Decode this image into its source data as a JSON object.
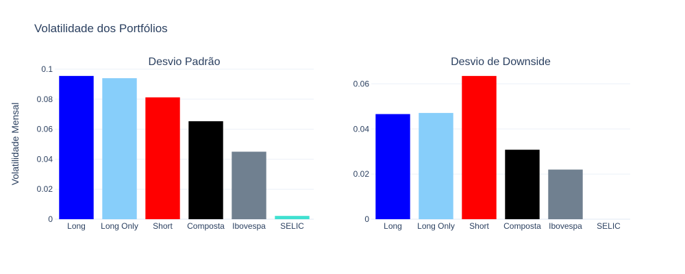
{
  "figure": {
    "title": "Volatilidade dos Portfólios",
    "ylabel": "Volatilidade Mensal"
  },
  "chart_data": [
    {
      "type": "bar",
      "title": "Desvio Padrão",
      "categories": [
        "Long",
        "Long Only",
        "Short",
        "Composta",
        "Ibovespa",
        "SELIC"
      ],
      "values": [
        0.0955,
        0.094,
        0.0812,
        0.0653,
        0.045,
        0.0022
      ],
      "colors": [
        "#0000ff",
        "#87cefa",
        "#ff0000",
        "#000000",
        "#708090",
        "#40e0d0"
      ],
      "ylim": [
        0,
        0.1
      ],
      "yticks": [
        0,
        0.02,
        0.04,
        0.06,
        0.08,
        0.1
      ],
      "ytick_labels": [
        "0",
        "0.02",
        "0.04",
        "0.06",
        "0.08",
        "0.1"
      ],
      "ylabel": "Volatilidade Mensal",
      "grid": true
    },
    {
      "type": "bar",
      "title": "Desvio de Downside",
      "categories": [
        "Long",
        "Long Only",
        "Short",
        "Composta",
        "Ibovespa",
        "SELIC"
      ],
      "values": [
        0.0466,
        0.0471,
        0.0635,
        0.0308,
        0.022,
        0
      ],
      "colors": [
        "#0000ff",
        "#87cefa",
        "#ff0000",
        "#000000",
        "#708090",
        "#40e0d0"
      ],
      "ylim": [
        0,
        0.0665
      ],
      "yticks": [
        0,
        0.02,
        0.04,
        0.06
      ],
      "ytick_labels": [
        "0",
        "0.02",
        "0.04",
        "0.06"
      ],
      "ylabel": "",
      "grid": true
    }
  ]
}
